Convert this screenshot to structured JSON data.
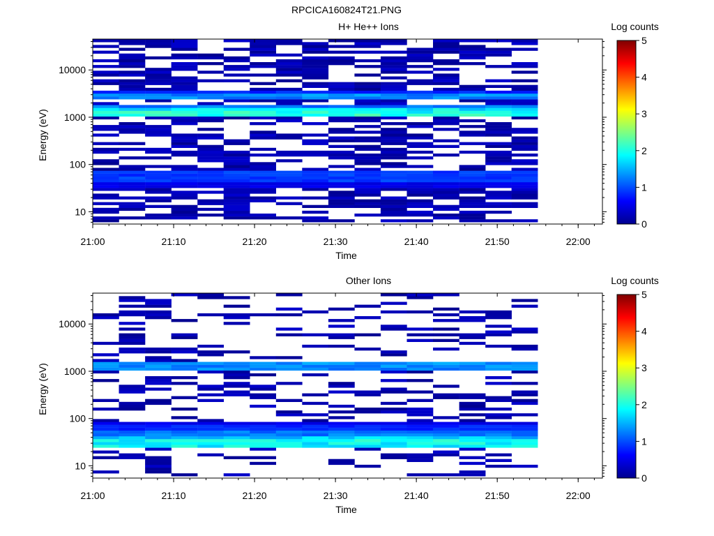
{
  "figure_title": "RPCICA160824T21.PNG",
  "chart_data": [
    {
      "type": "heatmap",
      "title": "H+ He++ Ions",
      "xlabel": "Time",
      "ylabel": "Energy (eV)",
      "yscale": "log",
      "xlim": [
        "21:00",
        "22:03"
      ],
      "ylim": [
        5.5,
        45000
      ],
      "xticks": [
        "21:00",
        "21:10",
        "21:20",
        "21:30",
        "21:40",
        "21:50",
        "22:00"
      ],
      "yticks": [
        "10",
        "100",
        "1000",
        "10000"
      ],
      "colorbar": {
        "label": "Log counts",
        "ticks": [
          "0",
          "1",
          "2",
          "3",
          "4",
          "5"
        ],
        "range": [
          0,
          5
        ]
      },
      "data_time_range": [
        "21:00",
        "21:55"
      ],
      "columns": 17,
      "bands": [
        {
          "e_min": 1150,
          "e_max": 1350,
          "log_counts": 2.0
        },
        {
          "e_min": 1400,
          "e_max": 1550,
          "log_counts": 1.8
        },
        {
          "e_min": 1600,
          "e_max": 1800,
          "log_counts": 1.2
        },
        {
          "e_min": 2400,
          "e_max": 2800,
          "log_counts": 1.3
        },
        {
          "e_min": 3000,
          "e_max": 3300,
          "log_counts": 0.8
        },
        {
          "e_min": 45,
          "e_max": 70,
          "log_counts": 0.9
        },
        {
          "e_min": 36,
          "e_max": 44,
          "log_counts": 0.5
        }
      ],
      "fill_probability": 0.55
    },
    {
      "type": "heatmap",
      "title": "Other Ions",
      "xlabel": "Time",
      "ylabel": "Energy (eV)",
      "yscale": "log",
      "xlim": [
        "21:00",
        "22:03"
      ],
      "ylim": [
        5.5,
        45000
      ],
      "xticks": [
        "21:00",
        "21:10",
        "21:20",
        "21:30",
        "21:40",
        "21:50",
        "22:00"
      ],
      "yticks": [
        "10",
        "100",
        "1000",
        "10000"
      ],
      "colorbar": {
        "label": "Log counts",
        "ticks": [
          "0",
          "1",
          "2",
          "3",
          "4",
          "5"
        ],
        "range": [
          0,
          5
        ]
      },
      "data_time_range": [
        "21:00",
        "21:55"
      ],
      "columns": 17,
      "bands": [
        {
          "e_min": 1180,
          "e_max": 1400,
          "log_counts": 1.3
        },
        {
          "e_min": 27,
          "e_max": 33,
          "log_counts": 1.9
        },
        {
          "e_min": 33,
          "e_max": 40,
          "log_counts": 1.6
        },
        {
          "e_min": 40,
          "e_max": 50,
          "log_counts": 1.2
        },
        {
          "e_min": 50,
          "e_max": 65,
          "log_counts": 0.8
        },
        {
          "e_min": 65,
          "e_max": 75,
          "log_counts": 0.5
        }
      ],
      "fill_probability": 0.3
    }
  ]
}
